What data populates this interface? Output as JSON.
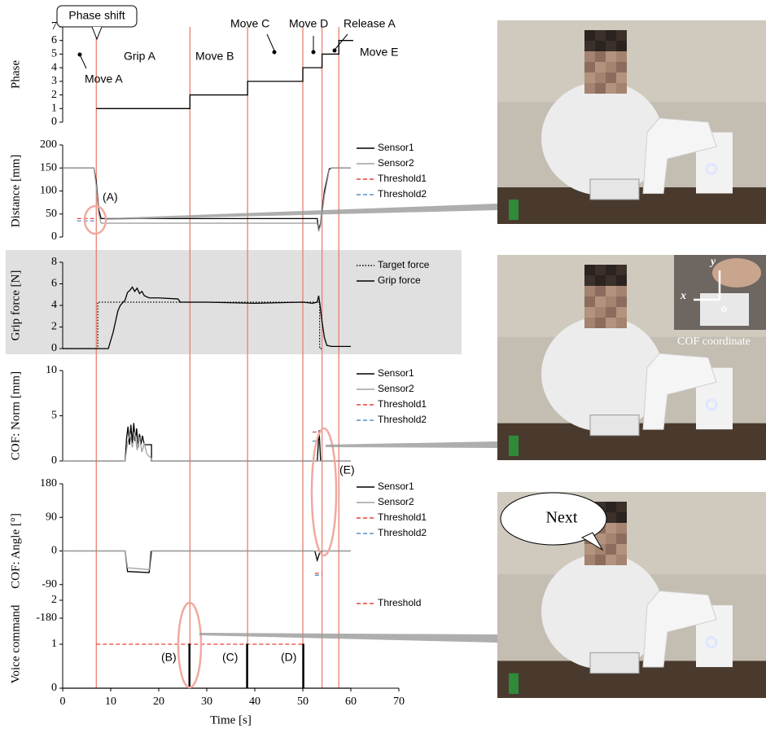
{
  "chart_data": [
    {
      "type": "line",
      "ylabel": "Phase",
      "xlim": [
        0,
        70
      ],
      "ylim": [
        0,
        7
      ],
      "yticks": [
        0,
        1,
        2,
        3,
        4,
        5,
        6,
        7
      ],
      "series": [
        {
          "color": "#000000",
          "x": [
            7,
            26.5,
            26.5,
            38.5,
            38.5,
            50,
            50,
            54,
            54,
            57.5,
            57.5,
            60.5
          ],
          "values": [
            1,
            1,
            2,
            2,
            3,
            3,
            4,
            4,
            5,
            5,
            6,
            6
          ]
        }
      ]
    },
    {
      "type": "line",
      "ylabel": "Distance [mm]",
      "xlim": [
        0,
        70
      ],
      "ylim": [
        0,
        200
      ],
      "yticks": [
        0,
        50,
        100,
        150,
        200
      ],
      "series": [
        {
          "name": "Sensor1",
          "color": "#000000",
          "x": [
            0,
            6.5,
            7,
            7.5,
            8,
            53,
            53.3,
            53.7,
            54.5,
            55.5,
            56,
            60
          ],
          "values": [
            150,
            150,
            120,
            60,
            40,
            40,
            15,
            30,
            100,
            148,
            150,
            150
          ]
        },
        {
          "name": "Sensor2",
          "color": "#a0a0a0",
          "x": [
            0,
            6.5,
            7,
            7.5,
            8,
            53,
            53.3,
            53.7,
            54.5,
            55.5,
            56,
            60
          ],
          "values": [
            150,
            150,
            110,
            50,
            30,
            30,
            12,
            25,
            90,
            145,
            150,
            150
          ]
        },
        {
          "name": "Threshold1",
          "color": "#e8413c",
          "dash": "dashed",
          "x": [
            3,
            7
          ],
          "values": [
            40,
            40
          ]
        },
        {
          "name": "Threshold2",
          "color": "#5b8ec9",
          "dash": "dashed",
          "x": [
            3,
            7
          ],
          "values": [
            35,
            35
          ]
        }
      ]
    },
    {
      "type": "line",
      "ylabel": "Grip force [N]",
      "background": "#e0e0e0",
      "xlim": [
        0,
        70
      ],
      "ylim": [
        0,
        8
      ],
      "yticks": [
        0,
        2,
        4,
        6,
        8
      ],
      "series": [
        {
          "name": "Target force",
          "color": "#000000",
          "dash": "dotted",
          "x": [
            0,
            7.3,
            7.3,
            53.5,
            53.5,
            54
          ],
          "values": [
            0,
            0,
            4.3,
            4.3,
            0,
            0
          ]
        },
        {
          "name": "Grip force",
          "color": "#000000",
          "x": [
            0,
            9.5,
            10.5,
            11.5,
            12,
            13,
            13.5,
            14,
            14.5,
            15,
            15.5,
            16,
            16.5,
            17,
            18,
            20,
            24,
            24.5,
            30,
            40,
            50,
            52,
            53,
            53.3,
            53.6,
            54,
            54.5,
            55,
            56,
            58,
            60
          ],
          "values": [
            0,
            0,
            1.5,
            3.5,
            4,
            4.5,
            5.2,
            5.4,
            5.7,
            5.3,
            5.6,
            5.1,
            5.3,
            4.9,
            4.7,
            4.7,
            4.6,
            4.3,
            4.3,
            4.2,
            4.3,
            4.2,
            4.3,
            4.9,
            4.0,
            2.5,
            1.0,
            0.3,
            0.2,
            0.2,
            0.2
          ]
        }
      ]
    },
    {
      "type": "line",
      "ylabel": "COF: Norm [mm]",
      "xlim": [
        0,
        70
      ],
      "ylim": [
        0,
        10
      ],
      "yticks": [
        0,
        5,
        10
      ],
      "series": [
        {
          "name": "Sensor1",
          "color": "#000000",
          "x": [
            0,
            13,
            13.3,
            13.6,
            13.9,
            14.2,
            14.5,
            14.8,
            15.1,
            15.4,
            15.7,
            16,
            16.3,
            16.6,
            17,
            18.5,
            18.5,
            53,
            53.4,
            53.7,
            60
          ],
          "values": [
            0,
            0,
            2.5,
            3.8,
            1.8,
            4.0,
            2.0,
            4.2,
            2.2,
            3.6,
            1.5,
            3.0,
            1.8,
            2.8,
            1.8,
            1.8,
            0,
            0,
            3.4,
            0,
            0
          ]
        },
        {
          "name": "Sensor2",
          "color": "#a0a0a0",
          "x": [
            0,
            13,
            13.5,
            14,
            14.5,
            15,
            15.5,
            16,
            16.5,
            17,
            17.5,
            18,
            18.5,
            18.6,
            60
          ],
          "values": [
            0,
            0,
            2,
            3,
            1.5,
            3.2,
            1.2,
            2.6,
            1.0,
            2.0,
            0.8,
            0.5,
            0.3,
            0,
            0
          ]
        },
        {
          "name": "Threshold1",
          "color": "#e8413c",
          "dash": "dashed",
          "x": [
            52,
            53.5
          ],
          "values": [
            3.2,
            3.2
          ]
        },
        {
          "name": "Threshold2",
          "color": "#5b8ec9",
          "dash": "dashed",
          "x": [
            52,
            53.5
          ],
          "values": [
            2.2,
            2.2
          ]
        }
      ]
    },
    {
      "type": "line",
      "ylabel": "COF: Angle [°]",
      "xlim": [
        0,
        70
      ],
      "ylim": [
        -180,
        180
      ],
      "yticks": [
        -180,
        -90,
        0,
        90,
        180
      ],
      "series": [
        {
          "name": "Sensor1",
          "color": "#000000",
          "x": [
            0,
            13,
            13.5,
            18,
            18.5,
            52.5,
            53,
            53.5,
            54,
            60
          ],
          "values": [
            0,
            0,
            -55,
            -58,
            0,
            0,
            -25,
            -5,
            0,
            0
          ]
        },
        {
          "name": "Sensor2",
          "color": "#a0a0a0",
          "x": [
            0,
            13,
            13.5,
            18,
            18.3,
            60
          ],
          "values": [
            0,
            0,
            -45,
            -50,
            0,
            0
          ]
        },
        {
          "name": "Threshold1",
          "color": "#e8413c",
          "dash": "dashed",
          "x": [
            52.5,
            54
          ],
          "values": [
            -60,
            -60
          ]
        },
        {
          "name": "Threshold2",
          "color": "#5b8ec9",
          "dash": "dashed",
          "x": [
            52.5,
            54
          ],
          "values": [
            -65,
            -65
          ]
        }
      ]
    },
    {
      "type": "line",
      "ylabel": "Voice command",
      "xlabel": "Time [s]",
      "xlim": [
        0,
        70
      ],
      "xticks": [
        0,
        10,
        20,
        30,
        40,
        50,
        60,
        70
      ],
      "ylim": [
        0,
        2
      ],
      "yticks": [
        0,
        1,
        2
      ],
      "series": [
        {
          "name": "Threshold",
          "color": "#e8413c",
          "dash": "dashed",
          "x": [
            7,
            50
          ],
          "values": [
            1,
            1
          ]
        },
        {
          "color": "#000000",
          "x": [
            0,
            26.3,
            26.3,
            26.5,
            26.5,
            38.3,
            38.3,
            38.5,
            38.5,
            50,
            50,
            50.2,
            50.2,
            60
          ],
          "values": [
            0,
            0,
            1,
            1,
            0,
            0,
            1,
            1,
            0,
            0,
            1,
            1,
            0,
            0
          ]
        }
      ]
    }
  ],
  "phase_shifts": {
    "color": "#e8806f",
    "x": [
      7,
      26.5,
      38.5,
      50,
      54,
      57.5
    ]
  },
  "annotations": {
    "phase_shift": "Phase shift",
    "move_a": "Move A",
    "grip_a": "Grip A",
    "move_b": "Move B",
    "move_c": "Move C",
    "move_d": "Move D",
    "release_a": "Release A",
    "move_e": "Move E",
    "a": "(A)",
    "b": "(B)",
    "c": "(C)",
    "d": "(D)",
    "e": "(E)"
  },
  "photos": {
    "inset_caption": "COF coordinate",
    "axis_x": "x",
    "axis_y": "y",
    "origin": "o",
    "speech": "Next"
  }
}
